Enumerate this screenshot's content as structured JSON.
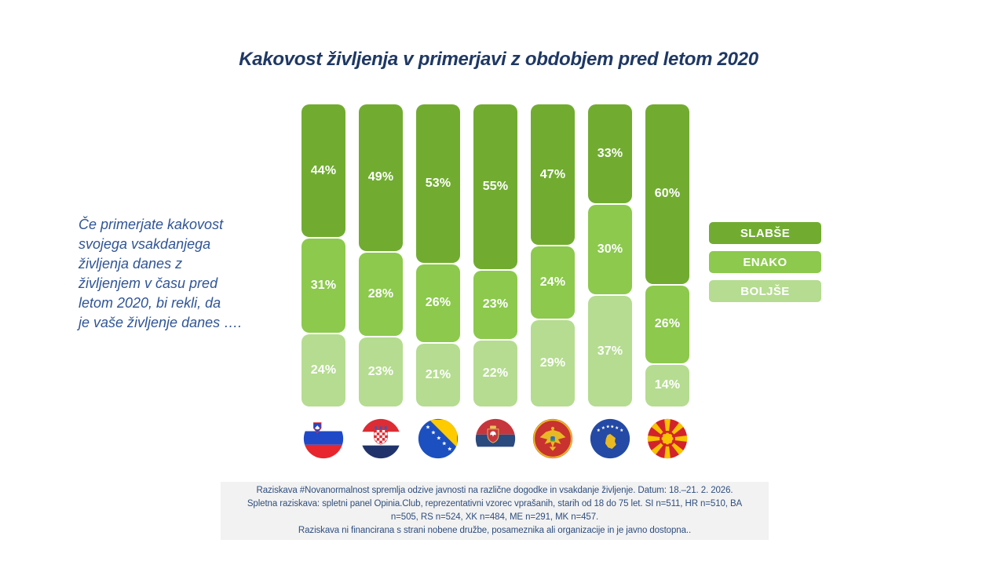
{
  "title": {
    "text": "Kakovost življenja v primerjavi z obdobjem pred letom 2020",
    "color": "#1F3864"
  },
  "question": {
    "text": "Če primerjate kakovost\nsvojega vsakdanjega\nživljenja danes z\nživljenjem v času pred\nletom 2020, bi rekli, da\nje vaše življenje danes …."
  },
  "chart_data": {
    "type": "bar",
    "stacked": true,
    "orientation": "vertical",
    "value_suffix": "%",
    "axes": "none",
    "legend_position": "right",
    "categories": [
      "Slovenija",
      "Hrvaška",
      "Bosna in Hercegovina",
      "Srbija",
      "Črna gora",
      "Kosovo",
      "Severna Makedonija"
    ],
    "category_icons": [
      "flag-slovenia-icon",
      "flag-croatia-icon",
      "flag-bosnia-icon",
      "flag-serbia-icon",
      "flag-montenegro-icon",
      "flag-kosovo-icon",
      "flag-north-macedonia-icon"
    ],
    "series": [
      {
        "name": "SLABŠE",
        "color": "#71AC31",
        "values": [
          44,
          49,
          53,
          55,
          47,
          33,
          60
        ]
      },
      {
        "name": "ENAKO",
        "color": "#8CC94D",
        "values": [
          31,
          28,
          26,
          23,
          24,
          30,
          26
        ]
      },
      {
        "name": "BOLJŠE",
        "color": "#B5DC90",
        "values": [
          24,
          23,
          21,
          22,
          29,
          37,
          14
        ]
      }
    ]
  },
  "footer": {
    "background": "#F2F2F2",
    "lines": [
      "Raziskava #Novanormalnost spremlja odzive javnosti na različne dogodke in vsakdanje življenje. Datum: 18.–21. 2. 2026.",
      "Spletna raziskava: spletni panel Opinia.Club, reprezentativni vzorec vprašanih, starih od 18 do 75 let. SI n=511, HR n=510, BA",
      "n=505, RS n=524, XK n=484, ME n=291, MK n=457.",
      "Raziskava ni financirana s strani nobene družbe, posameznika ali organizacije in je javno dostopna.."
    ]
  }
}
